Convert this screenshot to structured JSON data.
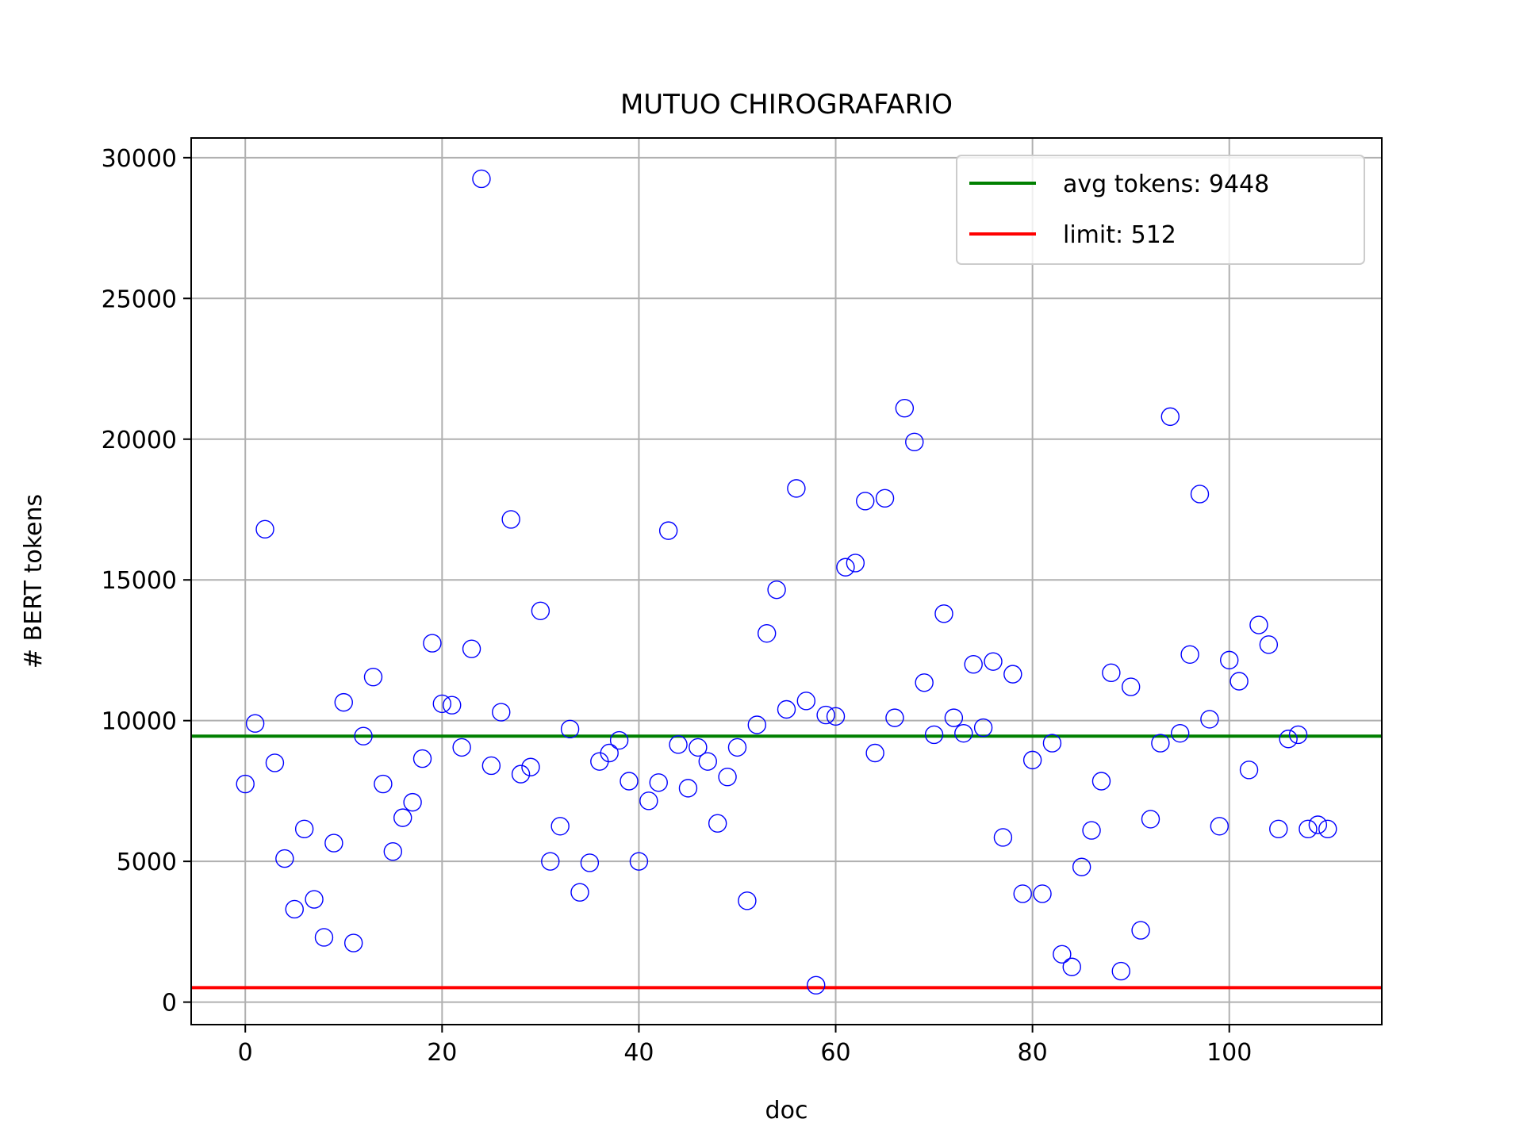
{
  "chart_data": {
    "type": "scatter",
    "title": "MUTUO CHIROGRAFARIO",
    "xlabel": "doc",
    "ylabel": "# BERT tokens",
    "xlim": [
      -5.5,
      115.5
    ],
    "ylim": [
      -800,
      30700
    ],
    "xticks": [
      0,
      20,
      40,
      60,
      80,
      100
    ],
    "yticks": [
      0,
      5000,
      10000,
      15000,
      20000,
      25000,
      30000
    ],
    "grid": true,
    "legend_position": "top-right",
    "marker": "hollow circle",
    "marker_color": "#0000ff",
    "points": [
      [
        0,
        7750
      ],
      [
        1,
        9900
      ],
      [
        2,
        16800
      ],
      [
        3,
        8500
      ],
      [
        4,
        5100
      ],
      [
        5,
        3300
      ],
      [
        6,
        6150
      ],
      [
        7,
        3650
      ],
      [
        8,
        2300
      ],
      [
        9,
        5650
      ],
      [
        10,
        10650
      ],
      [
        11,
        2100
      ],
      [
        12,
        9450
      ],
      [
        13,
        11550
      ],
      [
        14,
        7750
      ],
      [
        15,
        5350
      ],
      [
        16,
        6550
      ],
      [
        17,
        7100
      ],
      [
        18,
        8650
      ],
      [
        19,
        12750
      ],
      [
        20,
        10600
      ],
      [
        21,
        10550
      ],
      [
        22,
        9050
      ],
      [
        23,
        12550
      ],
      [
        24,
        29250
      ],
      [
        25,
        8400
      ],
      [
        26,
        10300
      ],
      [
        27,
        17150
      ],
      [
        28,
        8100
      ],
      [
        29,
        8350
      ],
      [
        30,
        13900
      ],
      [
        31,
        5000
      ],
      [
        32,
        6250
      ],
      [
        33,
        9700
      ],
      [
        34,
        3900
      ],
      [
        35,
        4950
      ],
      [
        36,
        8550
      ],
      [
        37,
        8850
      ],
      [
        38,
        9300
      ],
      [
        39,
        7850
      ],
      [
        40,
        5000
      ],
      [
        41,
        7150
      ],
      [
        42,
        7800
      ],
      [
        43,
        16750
      ],
      [
        44,
        9150
      ],
      [
        45,
        7600
      ],
      [
        46,
        9050
      ],
      [
        47,
        8550
      ],
      [
        48,
        6350
      ],
      [
        49,
        8000
      ],
      [
        50,
        9050
      ],
      [
        51,
        3600
      ],
      [
        52,
        9850
      ],
      [
        53,
        13100
      ],
      [
        54,
        14650
      ],
      [
        55,
        10400
      ],
      [
        56,
        18250
      ],
      [
        57,
        10700
      ],
      [
        58,
        600
      ],
      [
        59,
        10200
      ],
      [
        60,
        10150
      ],
      [
        61,
        15450
      ],
      [
        62,
        15600
      ],
      [
        63,
        17800
      ],
      [
        64,
        8850
      ],
      [
        65,
        17900
      ],
      [
        66,
        10100
      ],
      [
        67,
        21100
      ],
      [
        68,
        19900
      ],
      [
        69,
        11350
      ],
      [
        70,
        9500
      ],
      [
        71,
        13800
      ],
      [
        72,
        10100
      ],
      [
        73,
        9550
      ],
      [
        74,
        12000
      ],
      [
        75,
        9750
      ],
      [
        76,
        12100
      ],
      [
        77,
        5850
      ],
      [
        78,
        11650
      ],
      [
        79,
        3850
      ],
      [
        80,
        8600
      ],
      [
        81,
        3850
      ],
      [
        82,
        9200
      ],
      [
        83,
        1700
      ],
      [
        84,
        1250
      ],
      [
        85,
        4800
      ],
      [
        86,
        6100
      ],
      [
        87,
        7850
      ],
      [
        88,
        11700
      ],
      [
        89,
        1100
      ],
      [
        90,
        11200
      ],
      [
        91,
        2550
      ],
      [
        92,
        6500
      ],
      [
        93,
        9200
      ],
      [
        94,
        20800
      ],
      [
        95,
        9550
      ],
      [
        96,
        12350
      ],
      [
        97,
        18050
      ],
      [
        98,
        10050
      ],
      [
        99,
        6250
      ],
      [
        100,
        12150
      ],
      [
        101,
        11400
      ],
      [
        102,
        8250
      ],
      [
        103,
        13400
      ],
      [
        104,
        12700
      ],
      [
        105,
        6150
      ],
      [
        106,
        9350
      ],
      [
        107,
        9500
      ],
      [
        108,
        6150
      ],
      [
        109,
        6300
      ],
      [
        110,
        6150
      ]
    ],
    "series": [
      {
        "name": "avg tokens: 9448",
        "type": "hline",
        "y": 9448,
        "color": "#008000"
      },
      {
        "name": "limit: 512",
        "type": "hline",
        "y": 512,
        "color": "#ff0000"
      }
    ]
  }
}
